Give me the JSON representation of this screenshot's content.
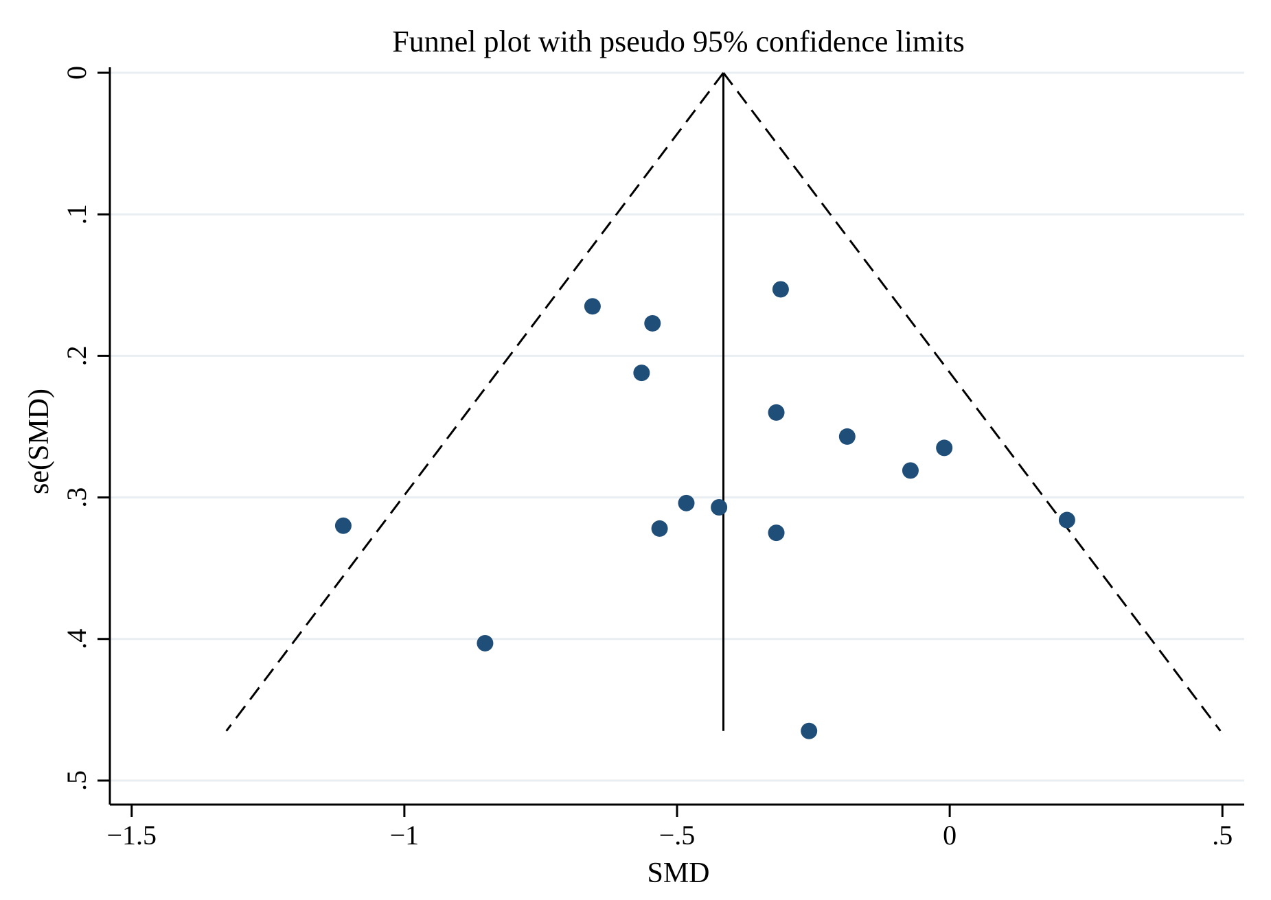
{
  "chart_data": {
    "type": "scatter",
    "title": "Funnel plot with pseudo 95% confidence limits",
    "xlabel": "SMD",
    "ylabel": "se(SMD)",
    "xlim": [
      -1.54,
      0.54
    ],
    "ylim": [
      0,
      0.517
    ],
    "y_reversed": true,
    "grid": true,
    "legend": "none",
    "x_ticks": [
      {
        "value": -1.5,
        "label": "−1.5"
      },
      {
        "value": -1,
        "label": "−1"
      },
      {
        "value": -0.5,
        "label": "−.5"
      },
      {
        "value": 0,
        "label": "0"
      },
      {
        "value": 0.5,
        "label": ".5"
      }
    ],
    "y_ticks": [
      {
        "value": 0,
        "label": "0"
      },
      {
        "value": 0.1,
        "label": ".1"
      },
      {
        "value": 0.2,
        "label": ".2"
      },
      {
        "value": 0.3,
        "label": ".3"
      },
      {
        "value": 0.4,
        "label": ".4"
      },
      {
        "value": 0.5,
        "label": ".5"
      }
    ],
    "pooled_estimate": -0.415,
    "funnel_se_max": 0.465,
    "points": [
      {
        "x": -0.31,
        "y": 0.153
      },
      {
        "x": -0.655,
        "y": 0.165
      },
      {
        "x": -0.545,
        "y": 0.177
      },
      {
        "x": -0.565,
        "y": 0.212
      },
      {
        "x": -0.318,
        "y": 0.24
      },
      {
        "x": -0.188,
        "y": 0.257
      },
      {
        "x": -0.01,
        "y": 0.265
      },
      {
        "x": -0.072,
        "y": 0.281
      },
      {
        "x": 0.215,
        "y": 0.316
      },
      {
        "x": -0.483,
        "y": 0.304
      },
      {
        "x": -0.423,
        "y": 0.307
      },
      {
        "x": -1.112,
        "y": 0.32
      },
      {
        "x": -0.532,
        "y": 0.322
      },
      {
        "x": -0.318,
        "y": 0.325
      },
      {
        "x": -0.852,
        "y": 0.403
      },
      {
        "x": -0.258,
        "y": 0.465
      }
    ],
    "colors": {
      "background": "#ffffff",
      "point": "#1f4e79",
      "grid": "#e8eef2",
      "axis": "#000000"
    }
  }
}
